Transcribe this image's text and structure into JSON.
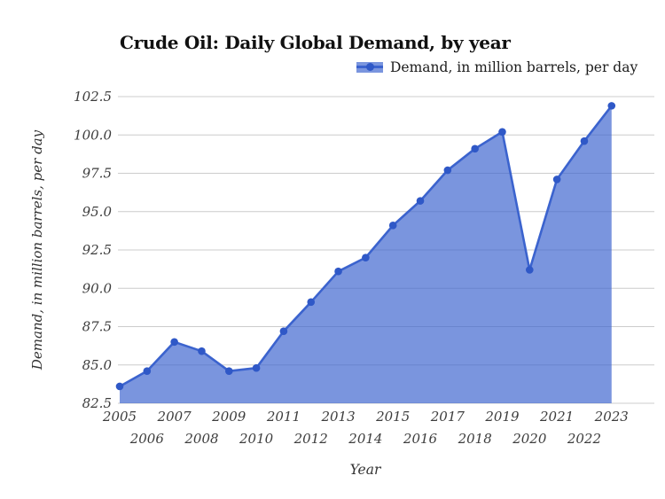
{
  "chart_data": {
    "type": "area",
    "title": "Crude Oil: Daily Global Demand, by year",
    "legend_label": "Demand, in million barrels, per day",
    "xlabel": "Year",
    "ylabel": "Demand, in million barrels, per day",
    "categories": [
      "2005",
      "2006",
      "2007",
      "2008",
      "2009",
      "2010",
      "2011",
      "2012",
      "2013",
      "2014",
      "2015",
      "2016",
      "2017",
      "2018",
      "2019",
      "2020",
      "2021",
      "2022",
      "2023"
    ],
    "values": [
      83.6,
      84.6,
      86.5,
      85.9,
      84.6,
      84.8,
      87.2,
      89.1,
      91.1,
      92.0,
      94.1,
      95.7,
      97.7,
      99.1,
      100.2,
      91.2,
      97.1,
      99.6,
      101.9
    ],
    "ylim": [
      82.5,
      102.5
    ],
    "yticks": [
      82.5,
      85.0,
      87.5,
      90.0,
      92.5,
      95.0,
      97.5,
      100.0,
      102.5
    ],
    "grid": "horizontal",
    "legend_position": "top-right",
    "colors": {
      "line": "#3B63CE",
      "marker": "#2F58C7",
      "fill": "#3B63CE",
      "fill_opacity": 0.68,
      "grid": "#CCCCCC",
      "tick_text": "#3D3D3D",
      "title_text": "#111111"
    }
  }
}
